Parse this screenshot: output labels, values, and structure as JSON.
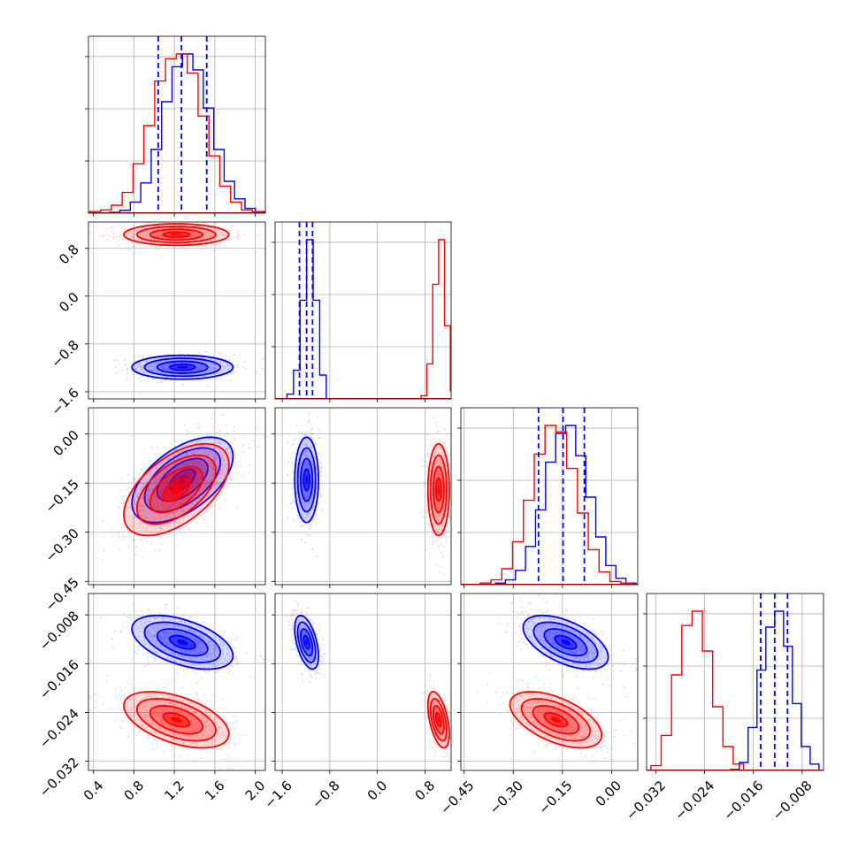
{
  "chart_data": {
    "type": "corner",
    "grid": true,
    "parameters": [
      {
        "ticks": [
          "0.4",
          "0.8",
          "1.2",
          "1.6",
          "2.0"
        ],
        "tick_values": [
          0.4,
          0.8,
          1.2,
          1.6,
          2.0
        ],
        "range": [
          0.35,
          2.1
        ]
      },
      {
        "ticks": [
          "−1.6",
          "−0.8",
          "0.0",
          "0.8"
        ],
        "tick_values": [
          -1.6,
          -0.8,
          0.0,
          0.8
        ],
        "range": [
          -1.72,
          1.24
        ]
      },
      {
        "ticks": [
          "−0.45",
          "−0.30",
          "−0.15",
          "0.00"
        ],
        "tick_values": [
          -0.45,
          -0.3,
          -0.15,
          0.0
        ],
        "range": [
          -0.46,
          0.08
        ]
      },
      {
        "ticks": [
          "−0.032",
          "−0.024",
          "−0.016",
          "−0.008"
        ],
        "tick_values": [
          -0.032,
          -0.024,
          -0.016,
          -0.008
        ],
        "range": [
          -0.0335,
          -0.0045
        ]
      }
    ],
    "series": [
      {
        "color": "#0000ff",
        "mean": [
          1.28,
          -1.19,
          -0.14,
          -0.0125
        ],
        "sigma": [
          0.25,
          0.1,
          0.065,
          0.0022
        ],
        "correlations": {
          "0-2": 0.55,
          "0-3": -0.5,
          "1-3": -0.5,
          "2-3": -0.55
        },
        "histograms": [
          [
            0.002,
            0.005,
            0.018,
            0.07,
            0.19,
            0.4,
            0.7,
            0.92,
            1.0,
            0.9,
            0.66,
            0.4,
            0.2,
            0.09,
            0.03,
            0.01
          ],
          [
            0.03,
            0.18,
            0.62,
            1.0,
            0.62,
            0.15
          ],
          [
            0.01,
            0.03,
            0.09,
            0.24,
            0.47,
            0.77,
            0.95,
            1.0,
            0.81,
            0.55,
            0.3,
            0.12,
            0.04,
            0.01
          ],
          [
            0.006,
            0.05,
            0.27,
            0.63,
            0.9,
            1.0,
            0.78,
            0.42,
            0.15,
            0.04
          ]
        ],
        "quantile_lines": [
          [
            1.04,
            1.27,
            1.52
          ],
          [
            -1.31,
            -1.19,
            -1.09
          ],
          [
            -0.223,
            -0.148,
            -0.083
          ],
          [
            -0.0148,
            -0.0125,
            -0.0104
          ]
        ]
      },
      {
        "color": "#ff0000",
        "mean": [
          1.22,
          1.03,
          -0.17,
          -0.0252
        ],
        "sigma": [
          0.26,
          0.09,
          0.07,
          0.0023
        ],
        "correlations": {
          "0-2": 0.55,
          "0-3": -0.5,
          "1-3": -0.5,
          "2-3": -0.55
        },
        "histograms": [
          [
            0.01,
            0.02,
            0.05,
            0.13,
            0.31,
            0.55,
            0.83,
            0.97,
            1.0,
            0.88,
            0.61,
            0.36,
            0.17,
            0.07,
            0.02,
            0.01
          ],
          [
            0.02,
            0.22,
            0.72,
            1.0,
            0.46,
            0.05
          ],
          [
            0.01,
            0.03,
            0.1,
            0.27,
            0.53,
            0.82,
            1.0,
            0.96,
            0.73,
            0.45,
            0.22,
            0.08,
            0.02,
            0.01
          ],
          [
            0.03,
            0.22,
            0.6,
            0.91,
            1.0,
            0.75,
            0.4,
            0.15,
            0.04
          ]
        ]
      }
    ]
  }
}
